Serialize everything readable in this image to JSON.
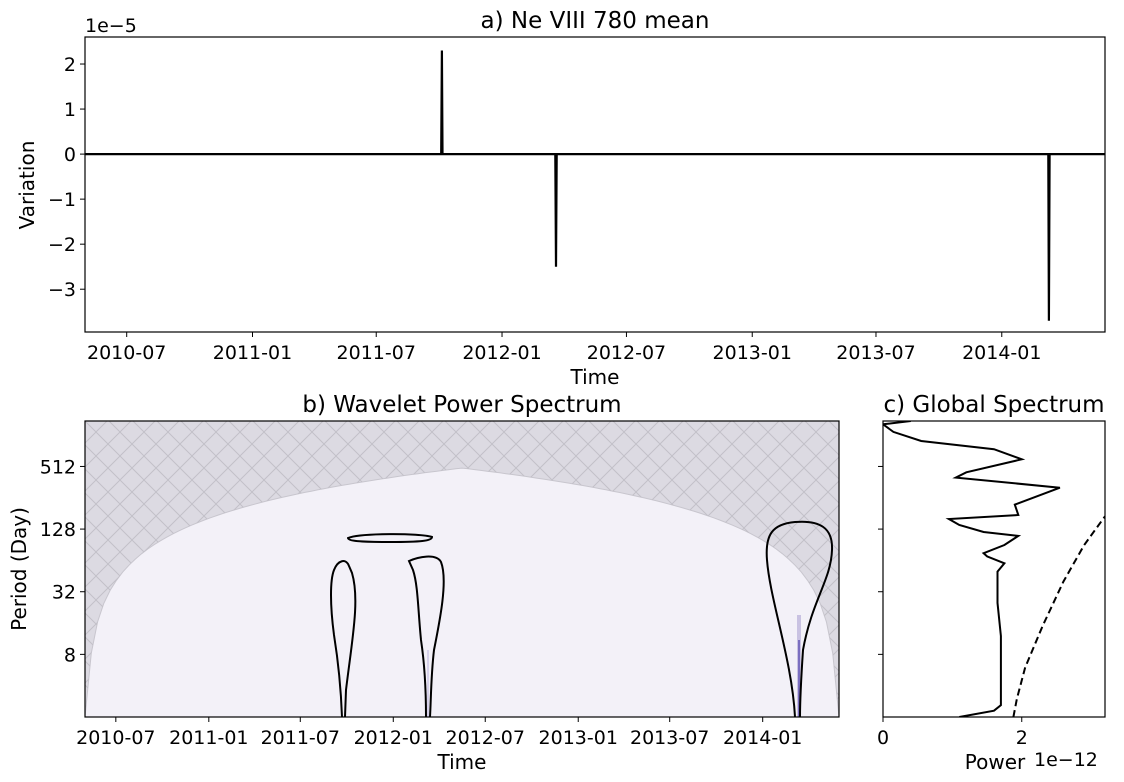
{
  "chart_data": [
    {
      "type": "line",
      "title": "a) Ne VIII 780 mean",
      "xlabel": "Time",
      "ylabel": "Variation",
      "y_scale_label": "1e−5",
      "x_ticks": [
        "2010-07",
        "2011-01",
        "2011-07",
        "2012-01",
        "2012-07",
        "2013-01",
        "2013-07",
        "2014-01"
      ],
      "y_ticks": [
        "2",
        "1",
        "0",
        "−1",
        "−2",
        "−3"
      ],
      "y_tick_values": [
        2,
        1,
        0,
        -1,
        -2,
        -3
      ],
      "xlim": [
        "2010-05-01",
        "2014-06-01"
      ],
      "ylim": [
        -3.95,
        2.6
      ],
      "series": [
        {
          "x": [
            "2010-05-01",
            "2011-10-04",
            "2011-10-05",
            "2011-10-06",
            "2012-03-19",
            "2012-03-20",
            "2012-03-21",
            "2014-03-10",
            "2014-03-11",
            "2014-03-12",
            "2014-06-01"
          ],
          "values": [
            0,
            0,
            2.3,
            0,
            0,
            -2.5,
            0,
            0,
            -3.7,
            0,
            0
          ]
        }
      ]
    },
    {
      "type": "heatmap",
      "title": "b) Wavelet Power Spectrum",
      "xlabel": "Time",
      "ylabel": "Period (Day)",
      "x_ticks": [
        "2010-07",
        "2011-01",
        "2011-07",
        "2012-01",
        "2012-07",
        "2013-01",
        "2013-07",
        "2014-01"
      ],
      "y_ticks": [
        "512",
        "128",
        "32",
        "8"
      ],
      "y_tick_values": [
        512,
        128,
        32,
        8
      ],
      "y_scale": "log2",
      "xlim": [
        "2010-05-01",
        "2014-06-01"
      ],
      "ylim": [
        2,
        1400
      ],
      "colors": {
        "background": "#f3f1f8",
        "cone": "#dcdae2",
        "hatch": "#c2c0c8",
        "contour": "#000000"
      }
    },
    {
      "type": "line",
      "title": "c) Global Spectrum",
      "xlabel": "Power",
      "x_scale_label": "1e−12",
      "x_ticks": [
        "0",
        "2"
      ],
      "x_tick_values": [
        0,
        2
      ],
      "xlim": [
        0,
        3.2
      ],
      "y_scale": "log2",
      "ylim": [
        2,
        1400
      ],
      "series": [
        {
          "style": "solid",
          "x": [
            1.1,
            1.6,
            1.7,
            1.7,
            1.65,
            1.65,
            1.65,
            1.75,
            1.5,
            1.45,
            1.75,
            1.95,
            1.45,
            1.1,
            0.95,
            1.95,
            1.9,
            2.55,
            1.05,
            1.2,
            2.0,
            1.6,
            0.55,
            0.15,
            0.0,
            0.4
          ],
          "y": [
            2,
            2.3,
            2.6,
            12,
            25,
            35,
            50,
            60,
            70,
            75,
            90,
            110,
            120,
            140,
            160,
            175,
            220,
            320,
            400,
            450,
            600,
            750,
            900,
            1100,
            1300,
            1400
          ]
        },
        {
          "style": "dashed",
          "x": [
            1.88,
            1.93,
            2.05,
            2.3,
            2.6,
            2.9,
            3.2
          ],
          "y": [
            2,
            3,
            6,
            15,
            40,
            90,
            170
          ]
        }
      ]
    }
  ]
}
